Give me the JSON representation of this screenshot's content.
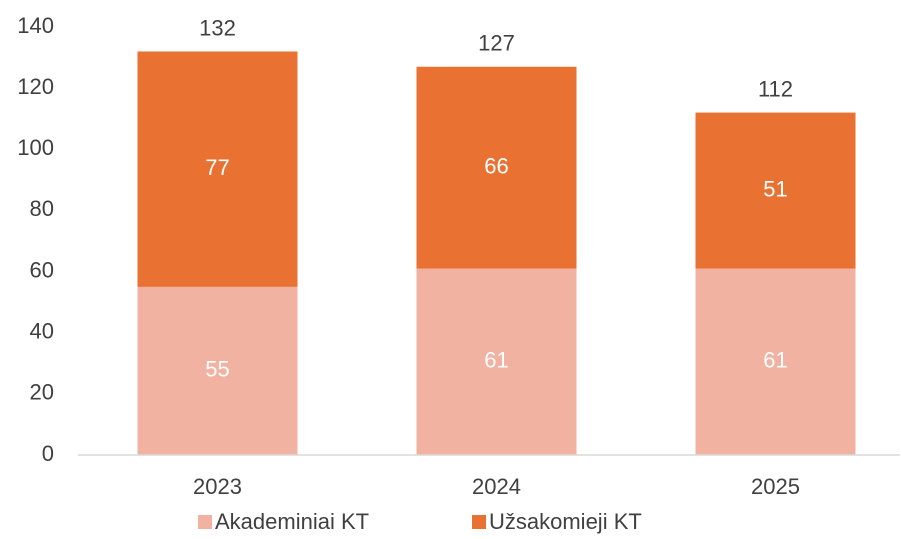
{
  "chart_data": {
    "type": "stacked_bar",
    "categories": [
      "2023",
      "2024",
      "2025"
    ],
    "series": [
      {
        "name": "Akademiniai KT",
        "color": "#f2b2a2",
        "values": [
          55,
          61,
          61
        ]
      },
      {
        "name": "Užsakomieji KT",
        "color": "#e97132",
        "values": [
          77,
          66,
          51
        ]
      }
    ],
    "totals": [
      132,
      127,
      112
    ],
    "ylim": [
      0,
      140
    ],
    "yticks": [
      0,
      20,
      40,
      60,
      80,
      100,
      120,
      140
    ],
    "grid": false,
    "legend": "bottom"
  }
}
